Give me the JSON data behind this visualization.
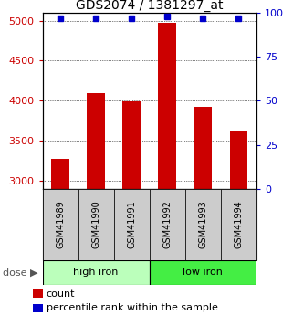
{
  "title": "GDS2074 / 1381297_at",
  "samples": [
    "GSM41989",
    "GSM41990",
    "GSM41991",
    "GSM41992",
    "GSM41993",
    "GSM41994"
  ],
  "counts": [
    3280,
    4100,
    3990,
    4970,
    3920,
    3620
  ],
  "percentiles": [
    97,
    97,
    97,
    98,
    97,
    97
  ],
  "groups": [
    {
      "label": "high iron",
      "color": "#bbffbb"
    },
    {
      "label": "low iron",
      "color": "#44ee44"
    }
  ],
  "ylim_left": [
    2900,
    5100
  ],
  "ylim_right": [
    0,
    100
  ],
  "yticks_left": [
    3000,
    3500,
    4000,
    4500,
    5000
  ],
  "yticks_right": [
    0,
    25,
    50,
    75,
    100
  ],
  "bar_color": "#cc0000",
  "dot_color": "#0000cc",
  "bar_width": 0.5,
  "label_area_color": "#cccccc",
  "dose_label": "dose",
  "legend_count": "count",
  "legend_percentile": "percentile rank within the sample",
  "title_fontsize": 10,
  "tick_fontsize": 8,
  "label_fontsize": 7,
  "axis_left_color": "#cc0000",
  "axis_right_color": "#0000cc"
}
